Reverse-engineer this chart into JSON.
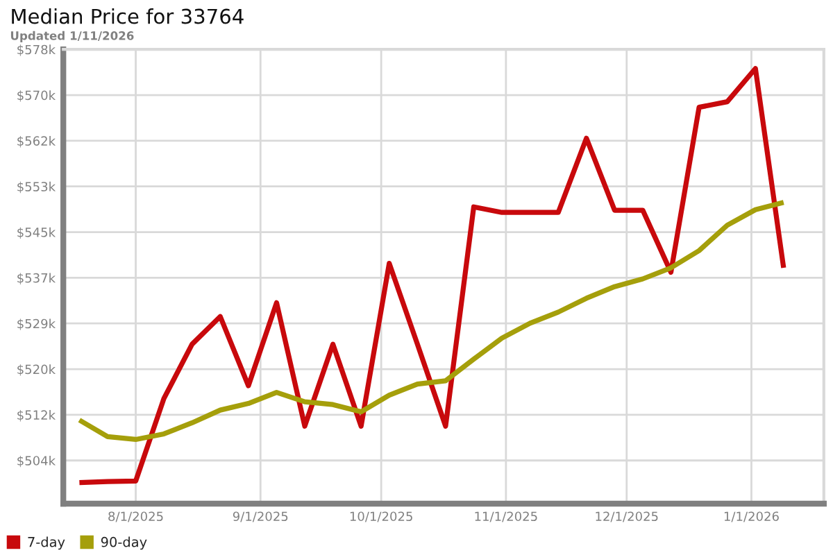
{
  "chart_data": {
    "type": "line",
    "title": "Median Price for 33764",
    "subtitle": "Updated 1/11/2026",
    "x": [
      "2025-07-18",
      "2025-07-25",
      "2025-08-01",
      "2025-08-08",
      "2025-08-15",
      "2025-08-22",
      "2025-08-29",
      "2025-09-05",
      "2025-09-12",
      "2025-09-19",
      "2025-09-26",
      "2025-10-03",
      "2025-10-10",
      "2025-10-17",
      "2025-10-24",
      "2025-10-31",
      "2025-11-07",
      "2025-11-14",
      "2025-11-21",
      "2025-11-28",
      "2025-12-05",
      "2025-12-12",
      "2025-12-19",
      "2025-12-26",
      "2026-01-02",
      "2026-01-09"
    ],
    "series": [
      {
        "name": "7-day",
        "color": "#c8090c",
        "values": [
          499.8,
          500.0,
          500.1,
          515.0,
          524.8,
          529.8,
          517.3,
          532.3,
          510.0,
          524.8,
          510.0,
          539.4,
          524.8,
          510.0,
          549.6,
          548.6,
          548.6,
          548.6,
          562.0,
          549.0,
          549.0,
          537.8,
          567.6,
          568.6,
          574.6,
          538.6
        ]
      },
      {
        "name": "90-day",
        "color": "#a59f0b",
        "values": [
          511.1,
          508.1,
          507.6,
          508.6,
          510.6,
          512.9,
          514.1,
          516.1,
          514.4,
          513.9,
          512.6,
          515.6,
          517.6,
          518.2,
          522.1,
          525.9,
          528.6,
          530.6,
          533.1,
          535.2,
          536.6,
          538.6,
          541.7,
          546.3,
          549.1,
          550.4
        ]
      }
    ],
    "xlim": [
      "2025-07-14",
      "2026-01-19"
    ],
    "xticks": [
      {
        "value": "2025-08-01",
        "label": "8/1/2025"
      },
      {
        "value": "2025-09-01",
        "label": "9/1/2025"
      },
      {
        "value": "2025-10-01",
        "label": "10/1/2025"
      },
      {
        "value": "2025-11-01",
        "label": "11/1/2025"
      },
      {
        "value": "2025-12-01",
        "label": "12/1/2025"
      },
      {
        "value": "2026-01-01",
        "label": "1/1/2026"
      }
    ],
    "ylim": [
      496.0,
      578.05
    ],
    "yticks": [
      {
        "value": 503.8,
        "label": "$504k"
      },
      {
        "value": 512.05,
        "label": "$512k"
      },
      {
        "value": 520.3,
        "label": "$520k"
      },
      {
        "value": 528.55,
        "label": "$529k"
      },
      {
        "value": 536.8,
        "label": "$537k"
      },
      {
        "value": 545.05,
        "label": "$545k"
      },
      {
        "value": 553.3,
        "label": "$553k"
      },
      {
        "value": 561.55,
        "label": "$562k"
      },
      {
        "value": 569.8,
        "label": "$570k"
      },
      {
        "value": 578.05,
        "label": "$578k"
      }
    ],
    "grid": true,
    "legend": "bottom left"
  }
}
